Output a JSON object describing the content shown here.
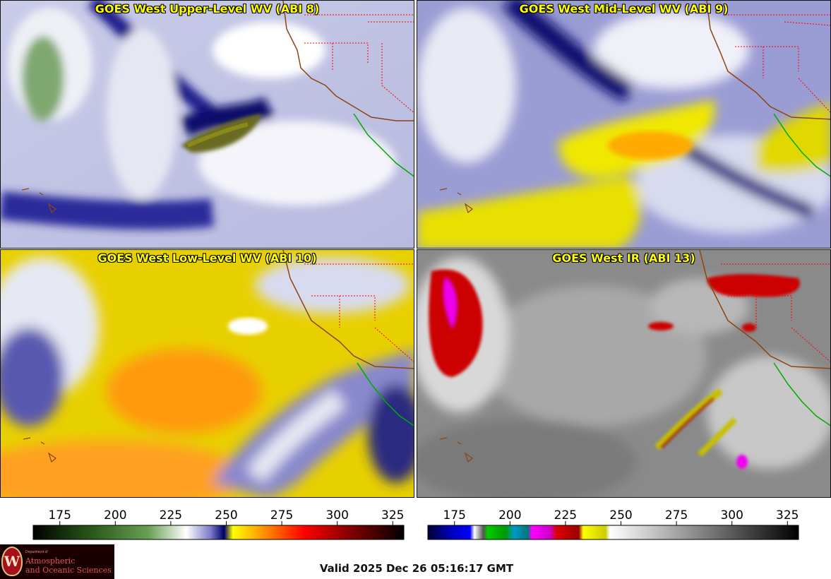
{
  "panels": [
    {
      "id": "upper",
      "title": "GOES West Upper-Level WV (ABI 8)"
    },
    {
      "id": "mid",
      "title": "GOES West Mid-Level WV (ABI 9)"
    },
    {
      "id": "low",
      "title": "GOES West Low-Level WV (ABI 10)"
    },
    {
      "id": "ir",
      "title": "GOES West IR (ABI 13)"
    }
  ],
  "colorbars": {
    "wv": {
      "ticks": [
        175,
        200,
        225,
        250,
        275,
        300,
        325
      ],
      "range": [
        163,
        330
      ],
      "stops": [
        {
          "v": 163,
          "c": "#000000"
        },
        {
          "v": 190,
          "c": "#2a5a1a"
        },
        {
          "v": 215,
          "c": "#6aa055"
        },
        {
          "v": 232,
          "c": "#ffffff"
        },
        {
          "v": 243,
          "c": "#7a7ac8"
        },
        {
          "v": 249,
          "c": "#000066"
        },
        {
          "v": 253,
          "c": "#ffff00"
        },
        {
          "v": 268,
          "c": "#ff8800"
        },
        {
          "v": 285,
          "c": "#ff0000"
        },
        {
          "v": 305,
          "c": "#880000"
        },
        {
          "v": 330,
          "c": "#000000"
        }
      ]
    },
    "ir": {
      "ticks": [
        175,
        200,
        225,
        250,
        275,
        300,
        325
      ],
      "range": [
        163,
        330
      ],
      "stops": [
        {
          "v": 163,
          "c": "#000033"
        },
        {
          "v": 172,
          "c": "#0000aa"
        },
        {
          "v": 182,
          "c": "#0000ff"
        },
        {
          "v": 184,
          "c": "#ffffff"
        },
        {
          "v": 188,
          "c": "#555555"
        },
        {
          "v": 190,
          "c": "#00cc00"
        },
        {
          "v": 198,
          "c": "#009900"
        },
        {
          "v": 202,
          "c": "#0099cc"
        },
        {
          "v": 208,
          "c": "#007777"
        },
        {
          "v": 210,
          "c": "#ff00ff"
        },
        {
          "v": 218,
          "c": "#cc00cc"
        },
        {
          "v": 221,
          "c": "#dd0000"
        },
        {
          "v": 231,
          "c": "#990000"
        },
        {
          "v": 233,
          "c": "#ffff00"
        },
        {
          "v": 243,
          "c": "#cccc00"
        },
        {
          "v": 245,
          "c": "#ffffff"
        },
        {
          "v": 330,
          "c": "#000000"
        }
      ]
    }
  },
  "logo": {
    "emblem": "W",
    "department": "Department of",
    "line1": "Atmospheric",
    "line2": "and Oceanic Sciences",
    "colors": {
      "background": "#1a0000",
      "text": "#e25555"
    }
  },
  "footer": {
    "valid": "Valid 2025 Dec 26 05:16:17 GMT"
  },
  "colors": {
    "title": "#ffff00",
    "coast": "#8b4513",
    "state_border": "#ff0000",
    "mexico_border": "#00aa00"
  }
}
